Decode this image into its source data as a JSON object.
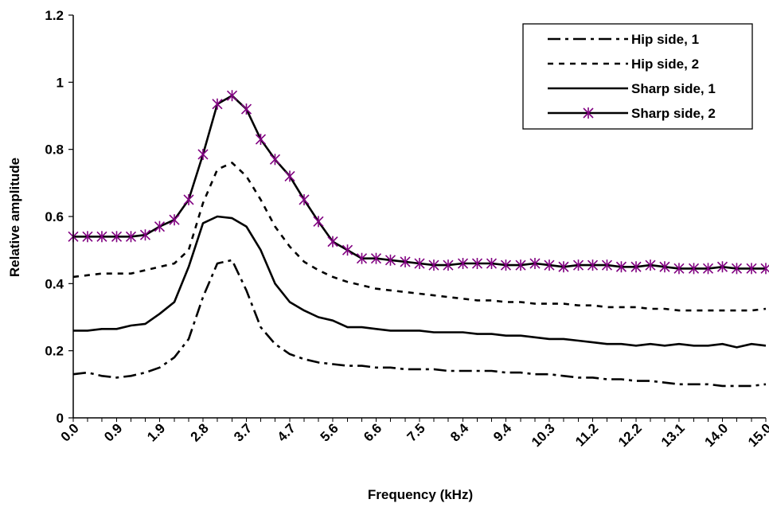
{
  "chart_data": {
    "type": "line",
    "title": "",
    "xlabel": "Frequency (kHz)",
    "ylabel": "Relative amplitude",
    "ylim": [
      0,
      1.2
    ],
    "yticks": [
      "0",
      "0.2",
      "0.4",
      "0.6",
      "0.8",
      "1",
      "1.2"
    ],
    "xticks": [
      "0.0",
      "0.9",
      "1.9",
      "2.8",
      "3.7",
      "4.7",
      "5.6",
      "6.6",
      "7.5",
      "8.4",
      "9.4",
      "10.3",
      "11.2",
      "12.2",
      "13.1",
      "14.0",
      "15.0"
    ],
    "grid": false,
    "legend_position": "top-right",
    "x": [
      0.0,
      0.31,
      0.62,
      0.94,
      1.25,
      1.56,
      1.87,
      2.19,
      2.5,
      2.81,
      3.12,
      3.44,
      3.75,
      4.06,
      4.37,
      4.69,
      5.0,
      5.31,
      5.62,
      5.94,
      6.25,
      6.56,
      6.87,
      7.19,
      7.5,
      7.81,
      8.12,
      8.44,
      8.75,
      9.06,
      9.37,
      9.69,
      10.0,
      10.31,
      10.62,
      10.94,
      11.25,
      11.56,
      11.87,
      12.19,
      12.5,
      12.81,
      13.12,
      13.44,
      13.75,
      14.06,
      14.37,
      14.69,
      15.0
    ],
    "series": [
      {
        "name": "Hip side, 1",
        "style": "dash-dot",
        "values": [
          0.13,
          0.135,
          0.125,
          0.12,
          0.125,
          0.135,
          0.15,
          0.18,
          0.235,
          0.36,
          0.46,
          0.47,
          0.38,
          0.27,
          0.22,
          0.19,
          0.175,
          0.165,
          0.16,
          0.155,
          0.155,
          0.15,
          0.15,
          0.145,
          0.145,
          0.145,
          0.14,
          0.14,
          0.14,
          0.14,
          0.135,
          0.135,
          0.13,
          0.13,
          0.125,
          0.12,
          0.12,
          0.115,
          0.115,
          0.11,
          0.11,
          0.105,
          0.1,
          0.1,
          0.1,
          0.095,
          0.095,
          0.095,
          0.1
        ]
      },
      {
        "name": "Hip side, 2",
        "style": "dotted",
        "values": [
          0.42,
          0.425,
          0.43,
          0.43,
          0.43,
          0.44,
          0.45,
          0.46,
          0.5,
          0.64,
          0.74,
          0.76,
          0.72,
          0.65,
          0.57,
          0.51,
          0.465,
          0.44,
          0.42,
          0.405,
          0.395,
          0.385,
          0.38,
          0.375,
          0.37,
          0.365,
          0.36,
          0.355,
          0.35,
          0.35,
          0.345,
          0.345,
          0.34,
          0.34,
          0.34,
          0.335,
          0.335,
          0.33,
          0.33,
          0.33,
          0.325,
          0.325,
          0.32,
          0.32,
          0.32,
          0.32,
          0.32,
          0.32,
          0.325
        ]
      },
      {
        "name": "Sharp side, 1",
        "style": "solid",
        "values": [
          0.26,
          0.26,
          0.265,
          0.265,
          0.275,
          0.28,
          0.31,
          0.345,
          0.45,
          0.58,
          0.6,
          0.595,
          0.57,
          0.5,
          0.4,
          0.345,
          0.32,
          0.3,
          0.29,
          0.27,
          0.27,
          0.265,
          0.26,
          0.26,
          0.26,
          0.255,
          0.255,
          0.255,
          0.25,
          0.25,
          0.245,
          0.245,
          0.24,
          0.235,
          0.235,
          0.23,
          0.225,
          0.22,
          0.22,
          0.215,
          0.22,
          0.215,
          0.22,
          0.215,
          0.215,
          0.22,
          0.21,
          0.22,
          0.215
        ]
      },
      {
        "name": "Sharp side, 2",
        "style": "solid-star",
        "values": [
          0.54,
          0.54,
          0.54,
          0.54,
          0.54,
          0.545,
          0.57,
          0.59,
          0.65,
          0.785,
          0.935,
          0.96,
          0.92,
          0.83,
          0.77,
          0.72,
          0.65,
          0.585,
          0.525,
          0.5,
          0.475,
          0.475,
          0.47,
          0.465,
          0.46,
          0.455,
          0.455,
          0.46,
          0.46,
          0.46,
          0.455,
          0.455,
          0.46,
          0.455,
          0.45,
          0.455,
          0.455,
          0.455,
          0.45,
          0.45,
          0.455,
          0.45,
          0.445,
          0.445,
          0.445,
          0.45,
          0.445,
          0.445,
          0.445
        ]
      }
    ],
    "colors": {
      "line": "#000000",
      "marker": "#800080"
    }
  }
}
